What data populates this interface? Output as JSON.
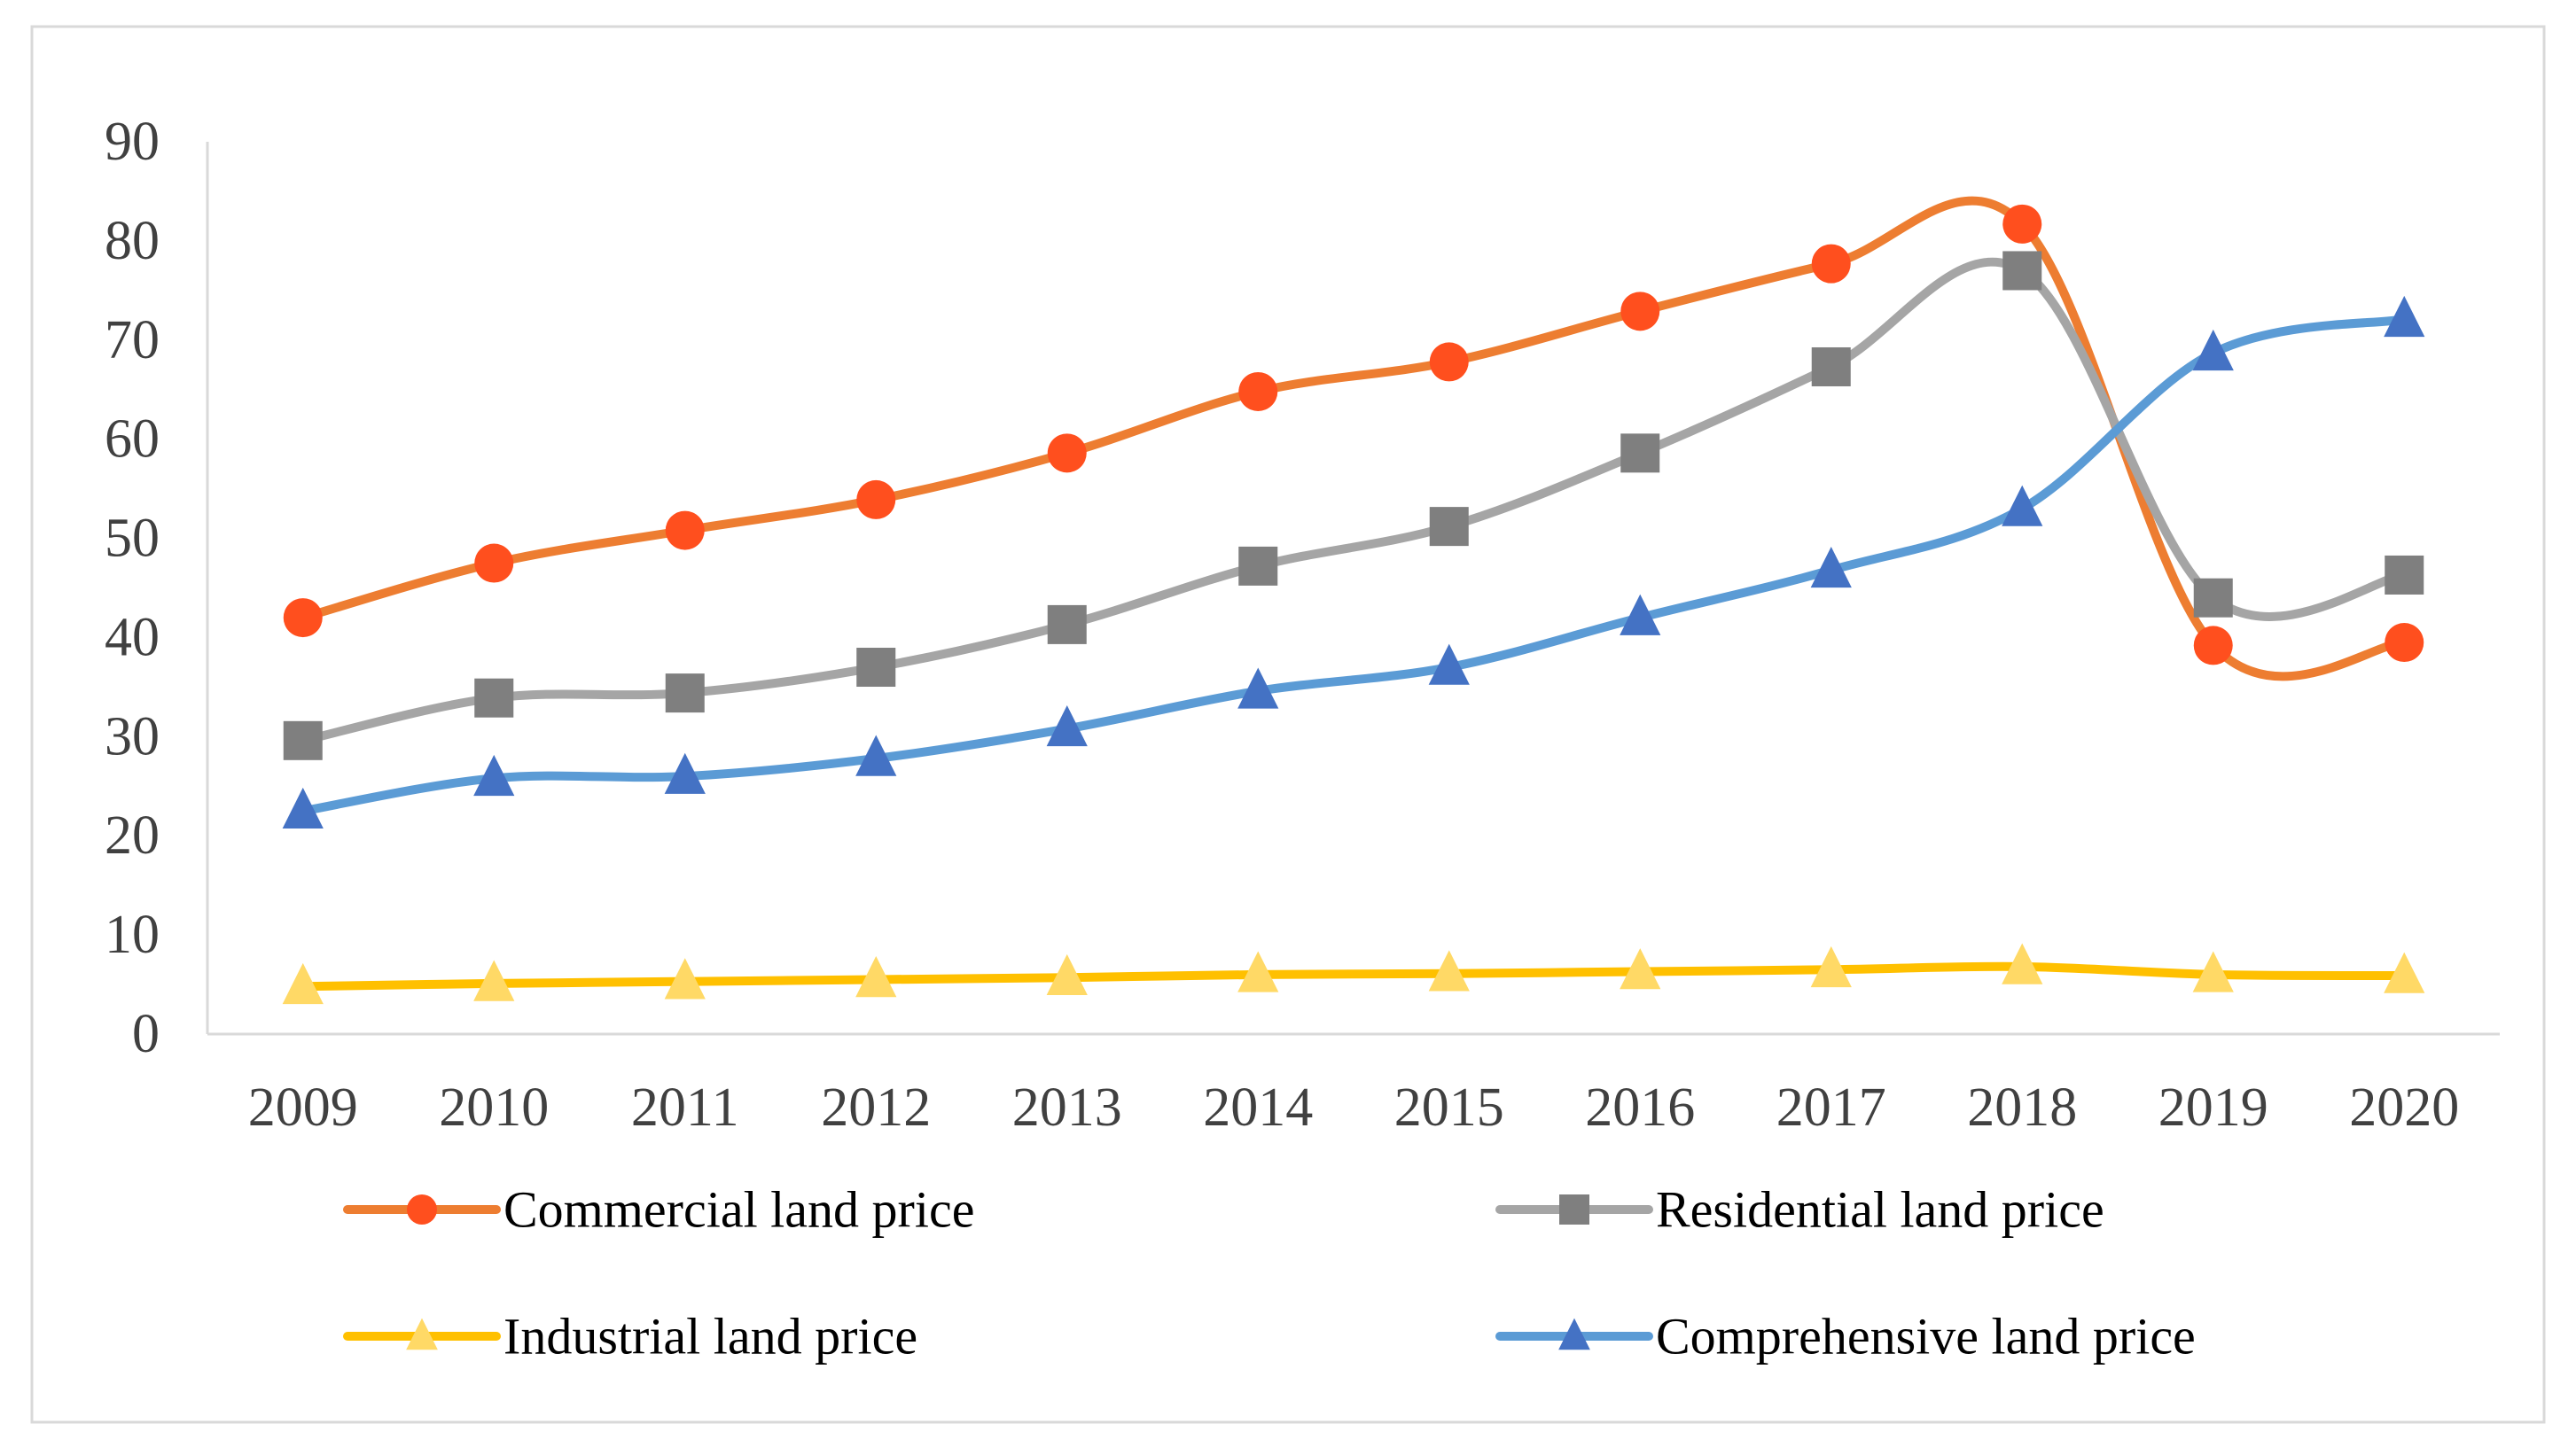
{
  "chart_data": {
    "type": "line",
    "title": "",
    "xlabel": "",
    "ylabel": "",
    "ylim": [
      0,
      90
    ],
    "yticks": [
      0,
      10,
      20,
      30,
      40,
      50,
      60,
      70,
      80,
      90
    ],
    "categories": [
      "2009",
      "2010",
      "2011",
      "2012",
      "2013",
      "2014",
      "2015",
      "2016",
      "2017",
      "2018",
      "2019",
      "2020"
    ],
    "grid": false,
    "legend_position": "bottom",
    "series": [
      {
        "name": "Commercial land price",
        "color": "#ED7D31",
        "marker": "circle",
        "marker_color": "#FF4F1E",
        "values": [
          42.0,
          47.5,
          50.8,
          53.9,
          58.6,
          64.8,
          67.8,
          72.9,
          77.7,
          81.7,
          39.2,
          39.5
        ]
      },
      {
        "name": "Residential land price",
        "color": "#A5A5A5",
        "marker": "square",
        "marker_color": "#7F7F7F",
        "values": [
          29.6,
          33.9,
          34.4,
          37.0,
          41.3,
          47.2,
          51.2,
          58.6,
          67.3,
          77.0,
          44.0,
          46.3
        ]
      },
      {
        "name": "Industrial land price",
        "color": "#FFC000",
        "marker": "triangle",
        "marker_color": "#FFD966",
        "values": [
          4.8,
          5.1,
          5.3,
          5.5,
          5.7,
          6.0,
          6.1,
          6.3,
          6.5,
          6.8,
          6.0,
          5.9
        ]
      },
      {
        "name": "Comprehensive land price",
        "color": "#5B9BD5",
        "marker": "triangle",
        "marker_color": "#4472C4",
        "values": [
          22.5,
          25.8,
          26.0,
          27.8,
          30.8,
          34.6,
          37.0,
          42.0,
          46.8,
          53.0,
          68.7,
          72.1
        ]
      }
    ]
  }
}
